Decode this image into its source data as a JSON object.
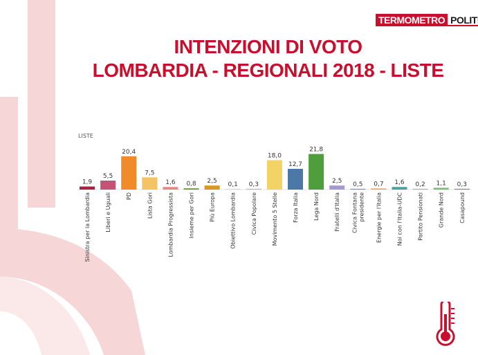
{
  "brand": {
    "part1": "TERMOMETRO",
    "part2": "POLITICO"
  },
  "header": {
    "title_line1": "INTENZIONI DI VOTO",
    "title_line2": "LOMBARDIA - REGIONALI 2018 - LISTE"
  },
  "chart_data": {
    "type": "bar",
    "title": "",
    "legend_label": "LISTE",
    "categories": [
      "Sinistra per la Lombardia",
      "Liberi e Uguali",
      "PD",
      "Lista Gori",
      "Lombardia Progressista",
      "Insieme per Gori",
      "Più Europa",
      "Obiettivo Lombardia",
      "Civica Popolare",
      "Movimento 5 Stelle",
      "Forza Italia",
      "Lega Nord",
      "Fratelli d'Italia",
      "Civica Fontana presidente",
      "Energie per l'Italia",
      "Noi con l'Italia-UDC",
      "Partito Pensionati",
      "Grande Nord",
      "Casapound"
    ],
    "values": [
      1.9,
      5.5,
      20.4,
      7.5,
      1.6,
      0.8,
      2.5,
      0.1,
      0.3,
      18.0,
      12.7,
      21.8,
      2.5,
      0.5,
      0.7,
      1.6,
      0.2,
      1.1,
      0.3
    ],
    "value_labels": [
      "1,9",
      "5,5",
      "20,4",
      "7,5",
      "1,6",
      "0,8",
      "2,5",
      "0,1",
      "0,3",
      "18,0",
      "12,7",
      "21,8",
      "2,5",
      "0,5",
      "0,7",
      "1,6",
      "0,2",
      "1,1",
      "0,3"
    ],
    "colors": [
      "#a8233f",
      "#c45376",
      "#f08a2b",
      "#f6c266",
      "#e58a85",
      "#7a9a3a",
      "#d89826",
      "#d8d8d8",
      "#b9b9b9",
      "#f2d365",
      "#4c78a8",
      "#4f9d3c",
      "#a59bd0",
      "#6e9bb0",
      "#e8a878",
      "#4aa3a0",
      "#b0b0b0",
      "#7fb87a",
      "#8a8a8a"
    ],
    "ylim": [
      0,
      22
    ],
    "grid": false
  },
  "icons": {
    "thermometer": "thermometer-icon"
  }
}
